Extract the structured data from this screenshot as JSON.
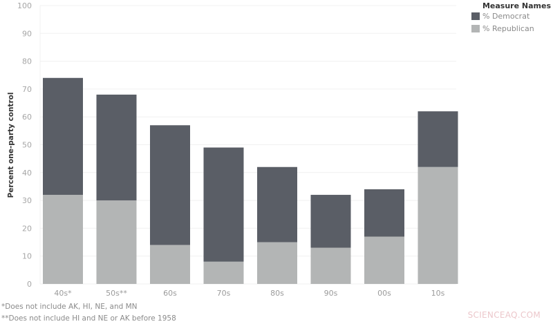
{
  "chart_data": {
    "type": "bar",
    "stacked": true,
    "title": "",
    "xlabel": "",
    "ylabel": "Percent one-party control",
    "ylim": [
      0,
      100
    ],
    "yticks": [
      0,
      10,
      20,
      30,
      40,
      50,
      60,
      70,
      80,
      90,
      100
    ],
    "grid": true,
    "categories": [
      "40s*",
      "50s**",
      "60s",
      "70s",
      "80s",
      "90s",
      "00s",
      "10s"
    ],
    "series": [
      {
        "name": "% Republican",
        "color": "#b3b5b5",
        "values": [
          32,
          30,
          14,
          8,
          15,
          13,
          17,
          42
        ]
      },
      {
        "name": "% Democrat",
        "color": "#5a5e66",
        "values": [
          42,
          38,
          43,
          41,
          27,
          19,
          17,
          20
        ]
      }
    ],
    "totals": [
      74,
      68,
      57,
      49,
      42,
      32,
      34,
      62
    ],
    "legend": {
      "title": "Measure Names",
      "position": "top-right",
      "entries": [
        {
          "label": "% Democrat",
          "color": "#5a5e66"
        },
        {
          "label": "% Republican",
          "color": "#b3b5b5"
        }
      ]
    }
  },
  "footnotes": [
    "*Does not include AK, HI, NE, and MN",
    "**Does not include HI and NE or AK before 1958"
  ],
  "watermark": "SCIENCEAQ.COM"
}
